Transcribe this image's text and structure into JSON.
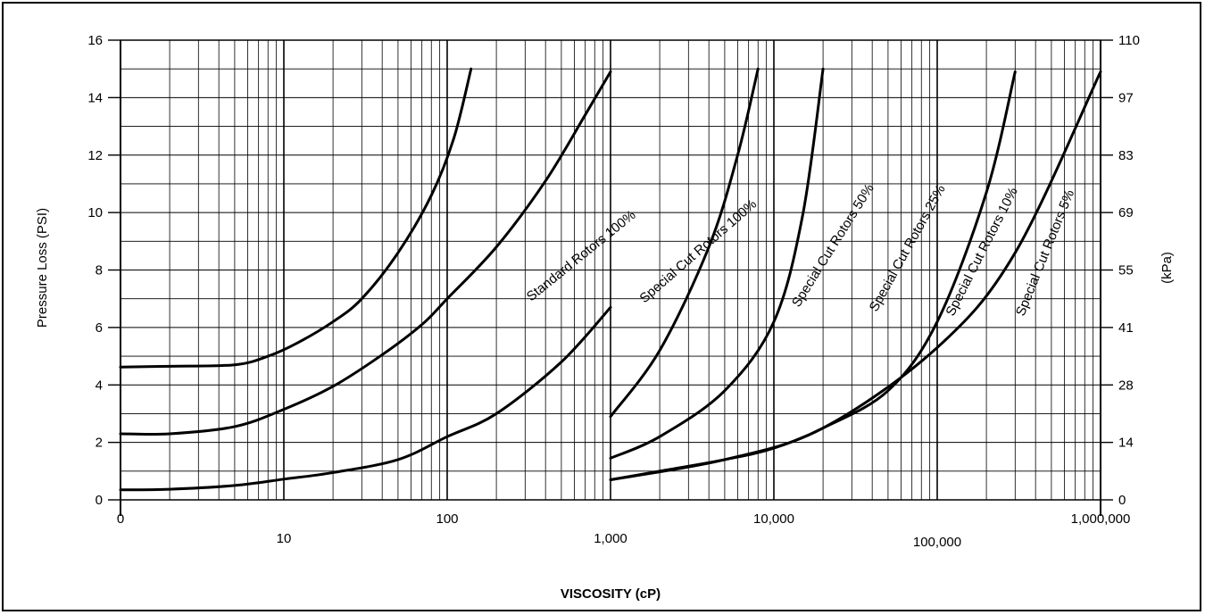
{
  "chart_data": {
    "type": "line",
    "title": "",
    "xlabel": "VISCOSITY (cP)",
    "ylabel": "Pressure  Loss (PSI)",
    "ylabel_right": "(kPa)",
    "x_scale": "log",
    "ylim": [
      0,
      16
    ],
    "grid": true,
    "legend": "none",
    "x_ticks": [
      {
        "value": 1,
        "label": "0"
      },
      {
        "value": 10,
        "label": "10"
      },
      {
        "value": 100,
        "label": "100"
      },
      {
        "value": 1000,
        "label": "1,000"
      },
      {
        "value": 10000,
        "label": "10,000"
      },
      {
        "value": 100000,
        "label": "100,000"
      },
      {
        "value": 1000000,
        "label": "1,000,000"
      }
    ],
    "y_ticks": [
      0,
      2,
      4,
      6,
      8,
      10,
      12,
      14,
      16
    ],
    "y_ticks_right": [
      "0",
      "14",
      "28",
      "41",
      "55",
      "69",
      "83",
      "97",
      "110"
    ],
    "series": [
      {
        "name": "Standard Rotors 100%",
        "x": [
          1,
          2,
          5,
          8,
          12,
          20,
          30,
          50,
          80,
          110,
          140
        ],
        "y": [
          4.62,
          4.65,
          4.7,
          5.0,
          5.45,
          6.2,
          7.0,
          8.6,
          10.6,
          12.6,
          15.0
        ]
      },
      {
        "name": "Special Cut Rotors 100%",
        "x": [
          1,
          2,
          5,
          10,
          20,
          40,
          70,
          100,
          200,
          400,
          700,
          1000
        ],
        "y": [
          2.3,
          2.3,
          2.55,
          3.15,
          3.95,
          5.05,
          6.1,
          7.0,
          8.8,
          11.1,
          13.4,
          14.9
        ]
      },
      {
        "name": "Special Cut Rotors 50%",
        "x": [
          1,
          2,
          5,
          10,
          20,
          50,
          100,
          200,
          500,
          1000,
          1000,
          2000,
          4000,
          6000,
          8000
        ],
        "y": [
          0.35,
          0.37,
          0.5,
          0.72,
          0.95,
          1.4,
          2.2,
          3.0,
          4.8,
          6.7,
          2.9,
          5.2,
          8.8,
          12.0,
          15.0
        ]
      },
      {
        "name": "Special Cut Rotors 25%",
        "x": [
          1000,
          2000,
          5000,
          10000,
          15000,
          20000
        ],
        "y": [
          1.45,
          2.2,
          3.8,
          6.2,
          9.9,
          15.0
        ]
      },
      {
        "name": "Special Cut Rotors 10%",
        "x": [
          1000,
          2000,
          5000,
          10000,
          20000,
          50000,
          100000,
          200000,
          300000
        ],
        "y": [
          0.7,
          1.0,
          1.4,
          1.8,
          2.5,
          3.8,
          6.2,
          10.7,
          14.9
        ]
      },
      {
        "name": "Special Cut Rotors 5%",
        "x": [
          1000,
          5000,
          20000,
          100000,
          300000,
          1000000
        ],
        "y": [
          0.7,
          1.4,
          2.5,
          5.3,
          8.6,
          14.9
        ]
      }
    ]
  }
}
